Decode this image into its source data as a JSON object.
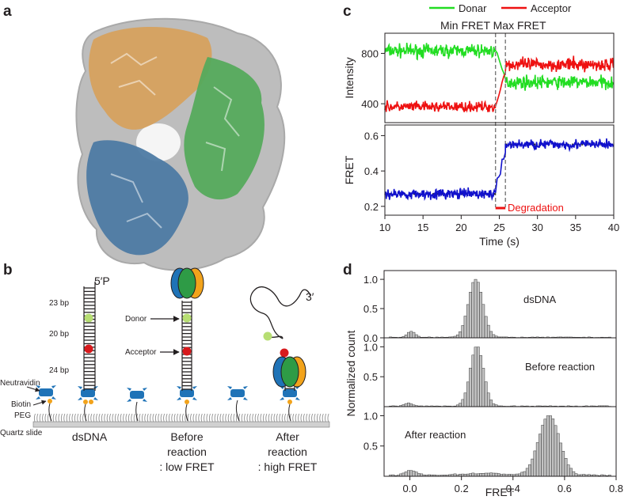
{
  "panels": {
    "a": {
      "label": "a"
    },
    "b": {
      "label": "b",
      "end_label": "5′P",
      "bp": [
        "23 bp",
        "20 bp",
        "24 bp"
      ],
      "donor": "Donor",
      "acceptor": "Acceptor",
      "three_prime": "3′",
      "surface": [
        "Neutravidin",
        "Biotin",
        "PEG",
        "Quartz slide"
      ],
      "conditions": [
        {
          "lines": [
            "dsDNA"
          ]
        },
        {
          "lines": [
            "Before",
            "reaction",
            ": low FRET"
          ]
        },
        {
          "lines": [
            "After",
            "reaction",
            ": high FRET"
          ]
        }
      ]
    },
    "c": {
      "label": "c",
      "legend": [
        {
          "name": "Donar",
          "color": "#22dd22"
        },
        {
          "name": "Acceptor",
          "color": "#ee1111"
        }
      ],
      "top_title": "Min FRET Max FRET",
      "annotation": "Degradation",
      "annotation_color": "#ee1111"
    },
    "d": {
      "label": "d"
    }
  },
  "chart_data": [
    {
      "type": "line",
      "panel": "c-top",
      "ylabel": "Intensity",
      "xlim": [
        10,
        40
      ],
      "ylim": [
        250,
        960
      ],
      "yticks": [
        400,
        800
      ],
      "markers_x": [
        24.5,
        25.8
      ],
      "series": [
        {
          "name": "Donar",
          "color": "#22dd22",
          "segments": [
            {
              "x": [
                10,
                24.5
              ],
              "mean": 820,
              "noise": 45
            },
            {
              "x": [
                24.5,
                25.8
              ],
              "from": 820,
              "to": 600
            },
            {
              "x": [
                25.8,
                40
              ],
              "mean": 570,
              "noise": 45
            }
          ]
        },
        {
          "name": "Acceptor",
          "color": "#ee1111",
          "segments": [
            {
              "x": [
                10,
                24.5
              ],
              "mean": 375,
              "noise": 35
            },
            {
              "x": [
                24.5,
                25.8
              ],
              "from": 375,
              "to": 660
            },
            {
              "x": [
                25.8,
                40
              ],
              "mean": 710,
              "noise": 45
            }
          ]
        }
      ]
    },
    {
      "type": "line",
      "panel": "c-bottom",
      "xlabel": "Time (s)",
      "ylabel": "FRET",
      "xlim": [
        10,
        40
      ],
      "ylim": [
        0.15,
        0.66
      ],
      "xticks": [
        10,
        15,
        20,
        25,
        30,
        35,
        40
      ],
      "yticks": [
        0.2,
        0.4,
        0.6
      ],
      "levels": [
        {
          "y": 0.27,
          "x": [
            10,
            24.5
          ]
        },
        {
          "y": 0.55,
          "x": [
            25.8,
            40
          ]
        }
      ],
      "degradation_x": [
        24.5,
        25.8
      ],
      "series": [
        {
          "name": "FRET",
          "color": "#1111cc",
          "segments": [
            {
              "x": [
                10,
                24.5
              ],
              "mean": 0.27,
              "noise": 0.025
            },
            {
              "x": [
                24.5,
                25.8
              ],
              "from": 0.27,
              "to": 0.53
            },
            {
              "x": [
                25.8,
                40
              ],
              "mean": 0.55,
              "noise": 0.025
            }
          ]
        }
      ]
    },
    {
      "type": "bar",
      "panel": "d",
      "xlabel": "FRET",
      "ylabel": "Normalized count",
      "xlim": [
        -0.1,
        0.8
      ],
      "xticks": [
        0.0,
        0.2,
        0.4,
        0.6,
        0.8
      ],
      "yticks": [
        0.0,
        0.5,
        1.0
      ],
      "ylim": [
        0,
        1.15
      ],
      "histograms": [
        {
          "label": "dsDNA",
          "peaks": [
            {
              "c": 0.25,
              "w": 0.028,
              "h": 1.0
            },
            {
              "c": 0.0,
              "w": 0.015,
              "h": 0.1
            }
          ],
          "baseline": 0.01
        },
        {
          "label": "Before reaction",
          "peaks": [
            {
              "c": 0.255,
              "w": 0.026,
              "h": 1.0
            },
            {
              "c": -0.01,
              "w": 0.015,
              "h": 0.05
            }
          ],
          "baseline": 0.01
        },
        {
          "label": "After reaction",
          "peaks": [
            {
              "c": 0.535,
              "w": 0.04,
              "h": 1.0
            },
            {
              "c": 0.0,
              "w": 0.02,
              "h": 0.08
            },
            {
              "c": 0.28,
              "w": 0.08,
              "h": 0.03
            }
          ],
          "baseline": 0.02
        }
      ]
    }
  ]
}
